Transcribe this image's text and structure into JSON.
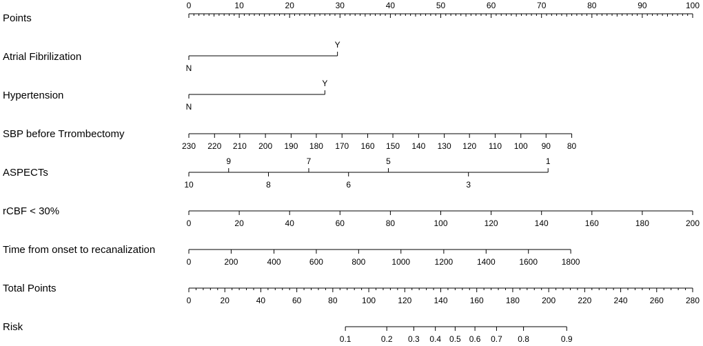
{
  "chart_data": {
    "type": "nomogram",
    "rows": [
      {
        "label": "Points",
        "kind": "axis",
        "points_min": 0,
        "points_max": 100,
        "major_ticks": [
          0,
          10,
          20,
          30,
          40,
          50,
          60,
          70,
          80,
          90,
          100
        ],
        "minor_step": 1,
        "medium_step": 5
      },
      {
        "label": "Atrial Fibrilization",
        "kind": "categorical",
        "levels": [
          {
            "value": "N",
            "points": 0,
            "side": "below"
          },
          {
            "value": "Y",
            "points": 29.5,
            "side": "above"
          }
        ]
      },
      {
        "label": "Hypertension",
        "kind": "categorical",
        "levels": [
          {
            "value": "N",
            "points": 0,
            "side": "below"
          },
          {
            "value": "Y",
            "points": 27,
            "side": "above"
          }
        ]
      },
      {
        "label": "SBP before Trrombectomy",
        "kind": "scale",
        "ticks": [
          {
            "value": "230",
            "points": 0
          },
          {
            "value": "220",
            "points": 5.1
          },
          {
            "value": "210",
            "points": 10.1
          },
          {
            "value": "200",
            "points": 15.2
          },
          {
            "value": "190",
            "points": 20.3
          },
          {
            "value": "180",
            "points": 25.3
          },
          {
            "value": "170",
            "points": 30.4
          },
          {
            "value": "160",
            "points": 35.5
          },
          {
            "value": "150",
            "points": 40.5
          },
          {
            "value": "140",
            "points": 45.6
          },
          {
            "value": "130",
            "points": 50.7
          },
          {
            "value": "120",
            "points": 55.7
          },
          {
            "value": "110",
            "points": 60.8
          },
          {
            "value": "100",
            "points": 65.9
          },
          {
            "value": "90",
            "points": 70.9
          },
          {
            "value": "80",
            "points": 76.0
          }
        ]
      },
      {
        "label": "ASPECTs",
        "kind": "scale",
        "ticks": [
          {
            "value": "10",
            "points": 0,
            "side": "below"
          },
          {
            "value": "9",
            "points": 7.9,
            "side": "above"
          },
          {
            "value": "8",
            "points": 15.8,
            "side": "below"
          },
          {
            "value": "7",
            "points": 23.8,
            "side": "above"
          },
          {
            "value": "6",
            "points": 31.7,
            "side": "below"
          },
          {
            "value": "5",
            "points": 39.6,
            "side": "above"
          },
          {
            "value": "3",
            "points": 55.5,
            "side": "below"
          },
          {
            "value": "1",
            "points": 71.3,
            "side": "above"
          }
        ]
      },
      {
        "label": "rCBF < 30%",
        "kind": "scale",
        "ticks": [
          {
            "value": "0",
            "points": 0
          },
          {
            "value": "20",
            "points": 10
          },
          {
            "value": "40",
            "points": 20
          },
          {
            "value": "60",
            "points": 30
          },
          {
            "value": "80",
            "points": 40
          },
          {
            "value": "100",
            "points": 50
          },
          {
            "value": "120",
            "points": 60
          },
          {
            "value": "140",
            "points": 70
          },
          {
            "value": "160",
            "points": 80
          },
          {
            "value": "180",
            "points": 90
          },
          {
            "value": "200",
            "points": 100
          }
        ]
      },
      {
        "label": "Time from onset to recanalization",
        "kind": "scale",
        "ticks": [
          {
            "value": "0",
            "points": 0
          },
          {
            "value": "200",
            "points": 8.4
          },
          {
            "value": "400",
            "points": 16.9
          },
          {
            "value": "600",
            "points": 25.3
          },
          {
            "value": "800",
            "points": 33.7
          },
          {
            "value": "1000",
            "points": 42.1
          },
          {
            "value": "1200",
            "points": 50.6
          },
          {
            "value": "1400",
            "points": 59.0
          },
          {
            "value": "1600",
            "points": 67.4
          },
          {
            "value": "1800",
            "points": 75.8
          }
        ]
      },
      {
        "label": "Total Points",
        "kind": "total",
        "total_min": 0,
        "total_max": 280,
        "major_ticks": [
          0,
          20,
          40,
          60,
          80,
          100,
          120,
          140,
          160,
          180,
          200,
          220,
          240,
          260,
          280
        ],
        "minor_step": 4,
        "medium_step": 10
      },
      {
        "label": "Risk",
        "kind": "risk",
        "ticks": [
          {
            "value": "0.1",
            "total": 87
          },
          {
            "value": "0.2",
            "total": 110
          },
          {
            "value": "0.3",
            "total": 125
          },
          {
            "value": "0.4",
            "total": 137
          },
          {
            "value": "0.5",
            "total": 148
          },
          {
            "value": "0.6",
            "total": 159
          },
          {
            "value": "0.7",
            "total": 171
          },
          {
            "value": "0.8",
            "total": 186
          },
          {
            "value": "0.9",
            "total": 210
          }
        ]
      }
    ]
  }
}
